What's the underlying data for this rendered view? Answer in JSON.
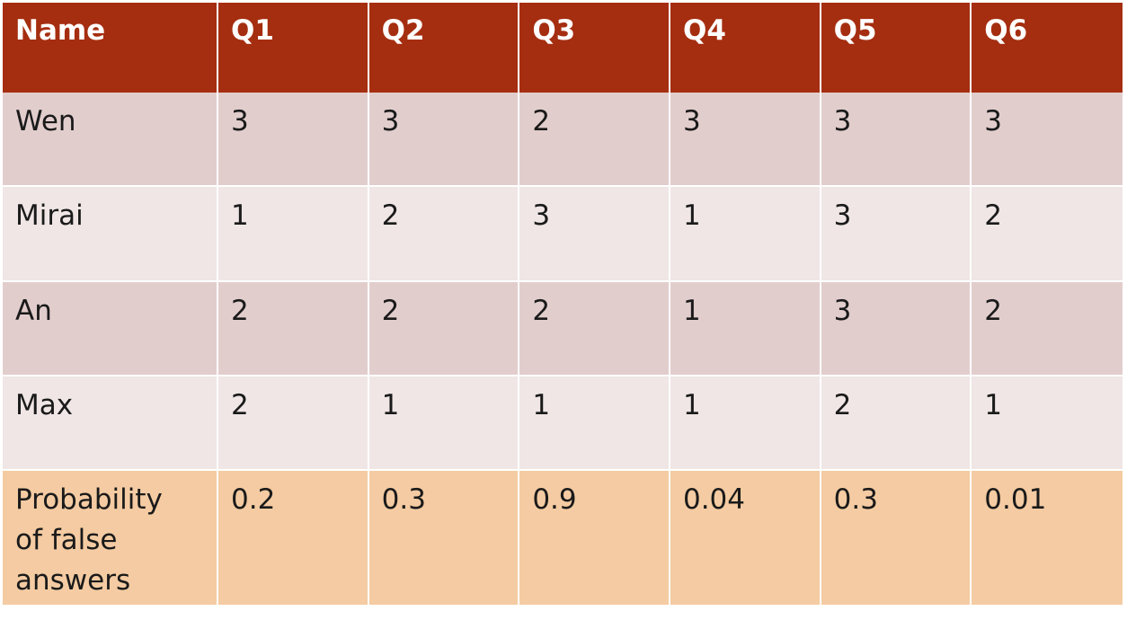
{
  "table": {
    "header": [
      "Name",
      "Q1",
      "Q2",
      "Q3",
      "Q4",
      "Q5",
      "Q6"
    ],
    "rows": [
      {
        "name": "Wen",
        "values": [
          "3",
          "3",
          "2",
          "3",
          "3",
          "3"
        ]
      },
      {
        "name": "Mirai",
        "values": [
          "1",
          "2",
          "3",
          "1",
          "3",
          "2"
        ]
      },
      {
        "name": "An",
        "values": [
          "2",
          "2",
          "2",
          "1",
          "3",
          "2"
        ]
      },
      {
        "name": "Max",
        "values": [
          "2",
          "1",
          "1",
          "1",
          "2",
          "1"
        ]
      }
    ],
    "probability_row": {
      "label_lines": [
        "Probability",
        "of false",
        "answers"
      ],
      "values": [
        "0.2",
        "0.3",
        "0.9",
        "0.04",
        "0.3",
        "0.01"
      ]
    }
  },
  "colors": {
    "header_bg": "#a52e10",
    "row_dark": "#e2cdcd",
    "row_light": "#efe6e5",
    "probability_row_bg": "#f4cba2"
  }
}
